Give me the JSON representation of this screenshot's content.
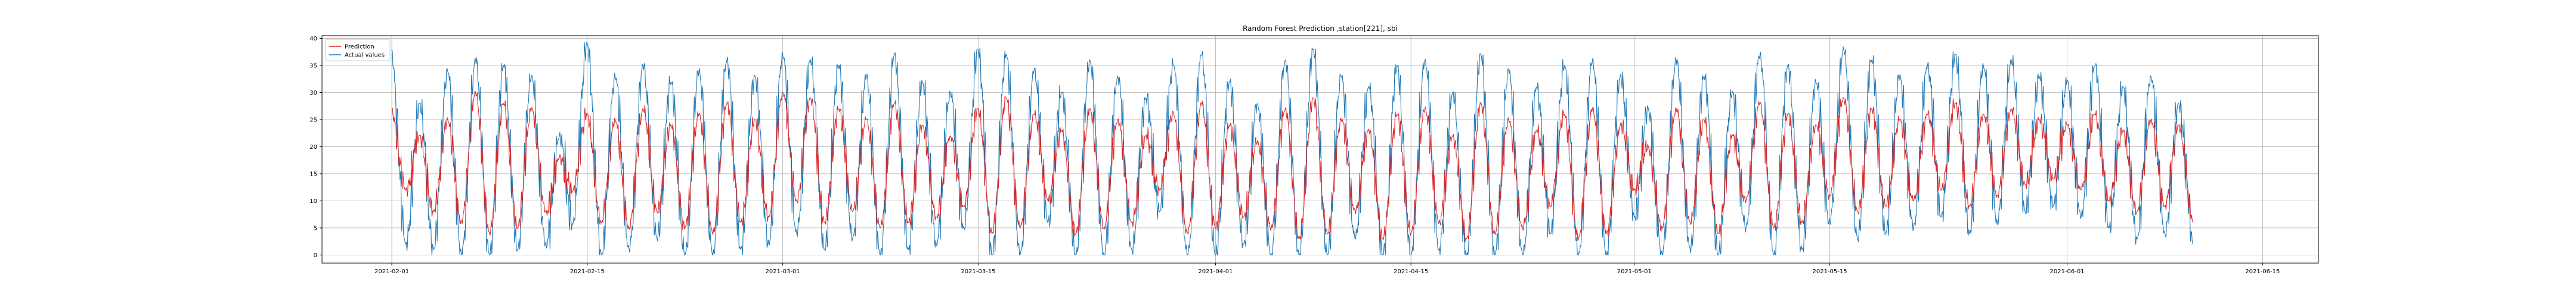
{
  "chart_data": {
    "type": "line",
    "title": "Random Forest Prediction ,station[221], sbi",
    "xlabel": "",
    "ylabel": "",
    "x_range": [
      "2021-01-27",
      "2021-06-19"
    ],
    "ylim": [
      -1.5,
      40.5
    ],
    "yticks": [
      0,
      5,
      10,
      15,
      20,
      25,
      30,
      35,
      40
    ],
    "xticks": [
      "2021-02-01",
      "2021-02-15",
      "2021-03-01",
      "2021-03-15",
      "2021-04-01",
      "2021-04-15",
      "2021-05-01",
      "2021-05-15",
      "2021-06-01",
      "2021-06-15"
    ],
    "grid": true,
    "legend_position": "upper-left",
    "series": [
      {
        "name": "Prediction",
        "color": "#d62728",
        "points": [
          [
            "2021-02-01",
            27
          ],
          [
            "2021-02-02",
            12
          ],
          [
            "2021-02-03",
            22
          ],
          [
            "2021-02-04",
            8
          ],
          [
            "2021-02-05",
            25
          ],
          [
            "2021-02-06",
            6
          ],
          [
            "2021-02-07",
            30
          ],
          [
            "2021-02-08",
            4
          ],
          [
            "2021-02-09",
            28
          ],
          [
            "2021-02-10",
            5
          ],
          [
            "2021-02-11",
            27
          ],
          [
            "2021-02-12",
            8
          ],
          [
            "2021-02-13",
            18
          ],
          [
            "2021-02-14",
            12
          ],
          [
            "2021-02-15",
            26
          ],
          [
            "2021-02-16",
            6
          ],
          [
            "2021-02-17",
            25
          ],
          [
            "2021-02-18",
            5
          ],
          [
            "2021-02-19",
            27
          ],
          [
            "2021-02-20",
            8
          ],
          [
            "2021-02-21",
            24
          ],
          [
            "2021-02-22",
            5
          ],
          [
            "2021-02-23",
            26
          ],
          [
            "2021-02-24",
            4
          ],
          [
            "2021-02-25",
            28
          ],
          [
            "2021-02-26",
            6
          ],
          [
            "2021-02-27",
            25
          ],
          [
            "2021-02-28",
            7
          ],
          [
            "2021-03-01",
            30
          ],
          [
            "2021-03-02",
            10
          ],
          [
            "2021-03-03",
            29
          ],
          [
            "2021-03-04",
            6
          ],
          [
            "2021-03-05",
            27
          ],
          [
            "2021-03-06",
            8
          ],
          [
            "2021-03-07",
            25
          ],
          [
            "2021-03-08",
            5
          ],
          [
            "2021-03-09",
            28
          ],
          [
            "2021-03-10",
            6
          ],
          [
            "2021-03-11",
            24
          ],
          [
            "2021-03-12",
            7
          ],
          [
            "2021-03-13",
            22
          ],
          [
            "2021-03-14",
            9
          ],
          [
            "2021-03-15",
            27
          ],
          [
            "2021-03-16",
            4
          ],
          [
            "2021-03-17",
            29
          ],
          [
            "2021-03-18",
            5
          ],
          [
            "2021-03-19",
            26
          ],
          [
            "2021-03-20",
            10
          ],
          [
            "2021-03-21",
            23
          ],
          [
            "2021-03-22",
            4
          ],
          [
            "2021-03-23",
            27
          ],
          [
            "2021-03-24",
            5
          ],
          [
            "2021-03-25",
            25
          ],
          [
            "2021-03-26",
            6
          ],
          [
            "2021-03-27",
            22
          ],
          [
            "2021-03-28",
            12
          ],
          [
            "2021-03-29",
            26
          ],
          [
            "2021-03-30",
            4
          ],
          [
            "2021-03-31",
            28
          ],
          [
            "2021-04-01",
            5
          ],
          [
            "2021-04-02",
            24
          ],
          [
            "2021-04-03",
            7
          ],
          [
            "2021-04-04",
            21
          ],
          [
            "2021-04-05",
            5
          ],
          [
            "2021-04-06",
            27
          ],
          [
            "2021-04-07",
            3
          ],
          [
            "2021-04-08",
            29
          ],
          [
            "2021-04-09",
            4
          ],
          [
            "2021-04-10",
            25
          ],
          [
            "2021-04-11",
            8
          ],
          [
            "2021-04-12",
            23
          ],
          [
            "2021-04-13",
            3
          ],
          [
            "2021-04-14",
            26
          ],
          [
            "2021-04-15",
            4
          ],
          [
            "2021-04-16",
            27
          ],
          [
            "2021-04-17",
            6
          ],
          [
            "2021-04-18",
            22
          ],
          [
            "2021-04-19",
            3
          ],
          [
            "2021-04-20",
            28
          ],
          [
            "2021-04-21",
            4
          ],
          [
            "2021-04-22",
            25
          ],
          [
            "2021-04-23",
            5
          ],
          [
            "2021-04-24",
            23
          ],
          [
            "2021-04-25",
            9
          ],
          [
            "2021-04-26",
            26
          ],
          [
            "2021-04-27",
            3
          ],
          [
            "2021-04-28",
            27
          ],
          [
            "2021-04-29",
            4
          ],
          [
            "2021-04-30",
            24
          ],
          [
            "2021-05-01",
            12
          ],
          [
            "2021-05-02",
            20
          ],
          [
            "2021-05-03",
            5
          ],
          [
            "2021-05-04",
            27
          ],
          [
            "2021-05-05",
            6
          ],
          [
            "2021-05-06",
            25
          ],
          [
            "2021-05-07",
            4
          ],
          [
            "2021-05-08",
            22
          ],
          [
            "2021-05-09",
            10
          ],
          [
            "2021-05-10",
            28
          ],
          [
            "2021-05-11",
            5
          ],
          [
            "2021-05-12",
            26
          ],
          [
            "2021-05-13",
            6
          ],
          [
            "2021-05-14",
            24
          ],
          [
            "2021-05-15",
            11
          ],
          [
            "2021-05-16",
            29
          ],
          [
            "2021-05-17",
            8
          ],
          [
            "2021-05-18",
            27
          ],
          [
            "2021-05-19",
            9
          ],
          [
            "2021-05-20",
            25
          ],
          [
            "2021-05-21",
            10
          ],
          [
            "2021-05-22",
            26
          ],
          [
            "2021-05-23",
            12
          ],
          [
            "2021-05-24",
            28
          ],
          [
            "2021-05-25",
            9
          ],
          [
            "2021-05-26",
            26
          ],
          [
            "2021-05-27",
            11
          ],
          [
            "2021-05-28",
            27
          ],
          [
            "2021-05-29",
            13
          ],
          [
            "2021-05-30",
            25
          ],
          [
            "2021-05-31",
            14
          ],
          [
            "2021-06-01",
            24
          ],
          [
            "2021-06-02",
            12
          ],
          [
            "2021-06-03",
            26
          ],
          [
            "2021-06-04",
            10
          ],
          [
            "2021-06-05",
            23
          ],
          [
            "2021-06-06",
            8
          ],
          [
            "2021-06-07",
            25
          ],
          [
            "2021-06-08",
            9
          ],
          [
            "2021-06-09",
            24
          ],
          [
            "2021-06-10",
            6
          ]
        ]
      },
      {
        "name": "Actual values",
        "color": "#1f77b4",
        "points": [
          [
            "2021-02-01",
            38
          ],
          [
            "2021-02-02",
            2
          ],
          [
            "2021-02-03",
            28
          ],
          [
            "2021-02-04",
            1
          ],
          [
            "2021-02-05",
            34
          ],
          [
            "2021-02-06",
            0
          ],
          [
            "2021-02-07",
            36
          ],
          [
            "2021-02-08",
            0
          ],
          [
            "2021-02-09",
            35
          ],
          [
            "2021-02-10",
            1
          ],
          [
            "2021-02-11",
            33
          ],
          [
            "2021-02-12",
            2
          ],
          [
            "2021-02-13",
            22
          ],
          [
            "2021-02-14",
            6
          ],
          [
            "2021-02-15",
            39
          ],
          [
            "2021-02-16",
            0
          ],
          [
            "2021-02-17",
            33
          ],
          [
            "2021-02-18",
            1
          ],
          [
            "2021-02-19",
            35
          ],
          [
            "2021-02-20",
            3
          ],
          [
            "2021-02-21",
            32
          ],
          [
            "2021-02-22",
            0
          ],
          [
            "2021-02-23",
            34
          ],
          [
            "2021-02-24",
            0
          ],
          [
            "2021-02-25",
            36
          ],
          [
            "2021-02-26",
            1
          ],
          [
            "2021-02-27",
            33
          ],
          [
            "2021-02-28",
            2
          ],
          [
            "2021-03-01",
            37
          ],
          [
            "2021-03-02",
            4
          ],
          [
            "2021-03-03",
            36
          ],
          [
            "2021-03-04",
            1
          ],
          [
            "2021-03-05",
            35
          ],
          [
            "2021-03-06",
            3
          ],
          [
            "2021-03-07",
            33
          ],
          [
            "2021-03-08",
            0
          ],
          [
            "2021-03-09",
            37
          ],
          [
            "2021-03-10",
            1
          ],
          [
            "2021-03-11",
            32
          ],
          [
            "2021-03-12",
            2
          ],
          [
            "2021-03-13",
            30
          ],
          [
            "2021-03-14",
            5
          ],
          [
            "2021-03-15",
            38
          ],
          [
            "2021-03-16",
            0
          ],
          [
            "2021-03-17",
            37
          ],
          [
            "2021-03-18",
            0
          ],
          [
            "2021-03-19",
            34
          ],
          [
            "2021-03-20",
            6
          ],
          [
            "2021-03-21",
            30
          ],
          [
            "2021-03-22",
            0
          ],
          [
            "2021-03-23",
            36
          ],
          [
            "2021-03-24",
            0
          ],
          [
            "2021-03-25",
            33
          ],
          [
            "2021-03-26",
            1
          ],
          [
            "2021-03-27",
            29
          ],
          [
            "2021-03-28",
            8
          ],
          [
            "2021-03-29",
            35
          ],
          [
            "2021-03-30",
            0
          ],
          [
            "2021-03-31",
            37
          ],
          [
            "2021-04-01",
            0
          ],
          [
            "2021-04-02",
            32
          ],
          [
            "2021-04-03",
            2
          ],
          [
            "2021-04-04",
            28
          ],
          [
            "2021-04-05",
            0
          ],
          [
            "2021-04-06",
            36
          ],
          [
            "2021-04-07",
            0
          ],
          [
            "2021-04-08",
            38
          ],
          [
            "2021-04-09",
            0
          ],
          [
            "2021-04-10",
            33
          ],
          [
            "2021-04-11",
            3
          ],
          [
            "2021-04-12",
            31
          ],
          [
            "2021-04-13",
            0
          ],
          [
            "2021-04-14",
            35
          ],
          [
            "2021-04-15",
            0
          ],
          [
            "2021-04-16",
            36
          ],
          [
            "2021-04-17",
            1
          ],
          [
            "2021-04-18",
            30
          ],
          [
            "2021-04-19",
            0
          ],
          [
            "2021-04-20",
            37
          ],
          [
            "2021-04-21",
            0
          ],
          [
            "2021-04-22",
            34
          ],
          [
            "2021-04-23",
            0
          ],
          [
            "2021-04-24",
            31
          ],
          [
            "2021-04-25",
            4
          ],
          [
            "2021-04-26",
            35
          ],
          [
            "2021-04-27",
            0
          ],
          [
            "2021-04-28",
            36
          ],
          [
            "2021-04-29",
            0
          ],
          [
            "2021-04-30",
            33
          ],
          [
            "2021-05-01",
            7
          ],
          [
            "2021-05-02",
            27
          ],
          [
            "2021-05-03",
            0
          ],
          [
            "2021-05-04",
            36
          ],
          [
            "2021-05-05",
            1
          ],
          [
            "2021-05-06",
            33
          ],
          [
            "2021-05-07",
            0
          ],
          [
            "2021-05-08",
            30
          ],
          [
            "2021-05-09",
            5
          ],
          [
            "2021-05-10",
            37
          ],
          [
            "2021-05-11",
            0
          ],
          [
            "2021-05-12",
            35
          ],
          [
            "2021-05-13",
            1
          ],
          [
            "2021-05-14",
            32
          ],
          [
            "2021-05-15",
            6
          ],
          [
            "2021-05-16",
            38
          ],
          [
            "2021-05-17",
            3
          ],
          [
            "2021-05-18",
            36
          ],
          [
            "2021-05-19",
            4
          ],
          [
            "2021-05-20",
            33
          ],
          [
            "2021-05-21",
            5
          ],
          [
            "2021-05-22",
            35
          ],
          [
            "2021-05-23",
            7
          ],
          [
            "2021-05-24",
            37
          ],
          [
            "2021-05-25",
            4
          ],
          [
            "2021-05-26",
            35
          ],
          [
            "2021-05-27",
            6
          ],
          [
            "2021-05-28",
            36
          ],
          [
            "2021-05-29",
            8
          ],
          [
            "2021-05-30",
            33
          ],
          [
            "2021-05-31",
            9
          ],
          [
            "2021-06-01",
            32
          ],
          [
            "2021-06-02",
            7
          ],
          [
            "2021-06-03",
            35
          ],
          [
            "2021-06-04",
            5
          ],
          [
            "2021-06-05",
            31
          ],
          [
            "2021-06-06",
            3
          ],
          [
            "2021-06-07",
            33
          ],
          [
            "2021-06-08",
            4
          ],
          [
            "2021-06-09",
            28
          ],
          [
            "2021-06-10",
            2
          ]
        ]
      }
    ]
  }
}
